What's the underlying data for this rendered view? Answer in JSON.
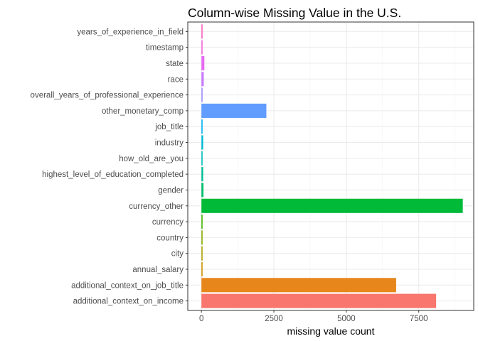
{
  "chart_data": {
    "type": "bar",
    "orientation": "horizontal",
    "title": "Column-wise Missing Value in the U.S.",
    "xlabel": "missing value count",
    "ylabel": "",
    "xlim": [
      0,
      9000
    ],
    "x_ticks": [
      0,
      2500,
      5000,
      7500
    ],
    "x_tick_labels": [
      "0",
      "2500",
      "5000",
      "7500"
    ],
    "grid": true,
    "legend": "none",
    "categories": [
      "additional_context_on_income",
      "additional_context_on_job_title",
      "annual_salary",
      "city",
      "country",
      "currency",
      "currency_other",
      "gender",
      "highest_level_of_education_completed",
      "how_old_are_you",
      "industry",
      "job_title",
      "other_monetary_comp",
      "overall_years_of_professional_experience",
      "race",
      "state",
      "timestamp",
      "years_of_experience_in_field"
    ],
    "values": [
      8100,
      6720,
      0,
      20,
      10,
      10,
      9020,
      70,
      60,
      0,
      60,
      0,
      2240,
      0,
      80,
      100,
      0,
      0
    ],
    "colors": [
      "#F8766D",
      "#E7861B",
      "#CF9400",
      "#AFA100",
      "#86AC00",
      "#45B500",
      "#00BA38",
      "#00BE70",
      "#00C097",
      "#00BFB9",
      "#00BBD7",
      "#00B1F0",
      "#619CFF",
      "#9C8DFF",
      "#C77CFF",
      "#E76BF3",
      "#F966DD",
      "#FF62BC"
    ]
  }
}
